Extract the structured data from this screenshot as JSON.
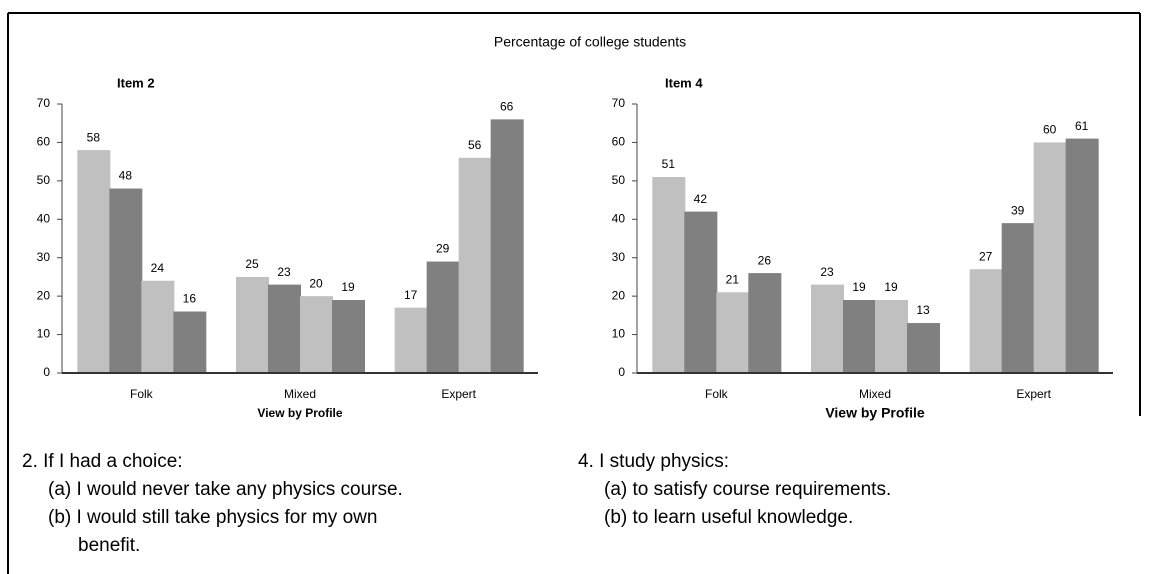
{
  "title": "Percentage of college students",
  "chart_data": [
    {
      "type": "bar",
      "title": "Item 2",
      "xlabel": "View by Profile",
      "categories": [
        "Folk",
        "Mixed",
        "Expert"
      ],
      "series": [
        {
          "color": "#c0c0c0",
          "values": [
            58,
            25,
            17
          ]
        },
        {
          "color": "#808080",
          "values": [
            48,
            23,
            29
          ]
        },
        {
          "color": "#c0c0c0",
          "values": [
            24,
            20,
            56
          ]
        },
        {
          "color": "#808080",
          "values": [
            16,
            19,
            66
          ]
        }
      ],
      "ylim": [
        0,
        70
      ],
      "yticks": [
        0,
        10,
        20,
        30,
        40,
        50,
        60,
        70
      ]
    },
    {
      "type": "bar",
      "title": "Item 4",
      "xlabel": "View by Profile",
      "categories": [
        "Folk",
        "Mixed",
        "Expert"
      ],
      "series": [
        {
          "color": "#c0c0c0",
          "values": [
            51,
            23,
            27
          ]
        },
        {
          "color": "#808080",
          "values": [
            42,
            19,
            39
          ]
        },
        {
          "color": "#c0c0c0",
          "values": [
            21,
            19,
            60
          ]
        },
        {
          "color": "#808080",
          "values": [
            26,
            13,
            61
          ]
        }
      ],
      "ylim": [
        0,
        70
      ],
      "yticks": [
        0,
        10,
        20,
        30,
        40,
        50,
        60,
        70
      ]
    }
  ],
  "questions": [
    {
      "heading": "2. If I had a choice:",
      "items": [
        "(a)  I would never take any physics course.",
        "(b)  I would still take physics for my own benefit."
      ]
    },
    {
      "heading": "4. I study physics:",
      "items": [
        "(a)  to satisfy course requirements.",
        "(b)  to learn useful knowledge."
      ]
    }
  ]
}
